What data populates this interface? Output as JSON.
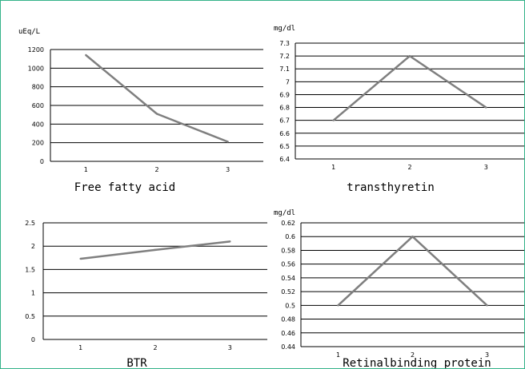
{
  "colors": {
    "frame": "#34b38a",
    "grid": "#000000",
    "line": "#7f7f7f"
  },
  "chart_data": [
    {
      "type": "line",
      "title": "Free fatty acid",
      "ylabel": "uEq/L",
      "categories": [
        "1",
        "2",
        "3"
      ],
      "values": [
        1140,
        510,
        210
      ],
      "ylim": [
        0,
        1200
      ],
      "yticks": [
        "0",
        "200",
        "400",
        "600",
        "800",
        "1000",
        "1200"
      ],
      "grid": true
    },
    {
      "type": "line",
      "title": "transthyretin",
      "ylabel": "mg/dl",
      "categories": [
        "1",
        "2",
        "3"
      ],
      "values": [
        6.7,
        7.2,
        6.8
      ],
      "ylim": [
        6.4,
        7.3
      ],
      "yticks": [
        "6.4",
        "6.5",
        "6.6",
        "6.7",
        "6.8",
        "6.9",
        "7",
        "7.1",
        "7.2",
        "7.3"
      ],
      "grid": true
    },
    {
      "type": "line",
      "title": "BTR",
      "ylabel": "",
      "categories": [
        "1",
        "2",
        "3"
      ],
      "values": [
        1.73,
        1.92,
        2.1
      ],
      "ylim": [
        0,
        2.5
      ],
      "yticks": [
        "0",
        "0.5",
        "1",
        "1.5",
        "2",
        "2.5"
      ],
      "grid": true
    },
    {
      "type": "line",
      "title": "Retinalbinding protein",
      "ylabel": "mg/dl",
      "categories": [
        "1",
        "2",
        "3"
      ],
      "values": [
        0.5,
        0.6,
        0.5
      ],
      "ylim": [
        0.44,
        0.62
      ],
      "yticks": [
        "0.44",
        "0.46",
        "0.48",
        "0.5",
        "0.52",
        "0.54",
        "0.56",
        "0.58",
        "0.6",
        "0.62"
      ],
      "grid": true
    }
  ]
}
